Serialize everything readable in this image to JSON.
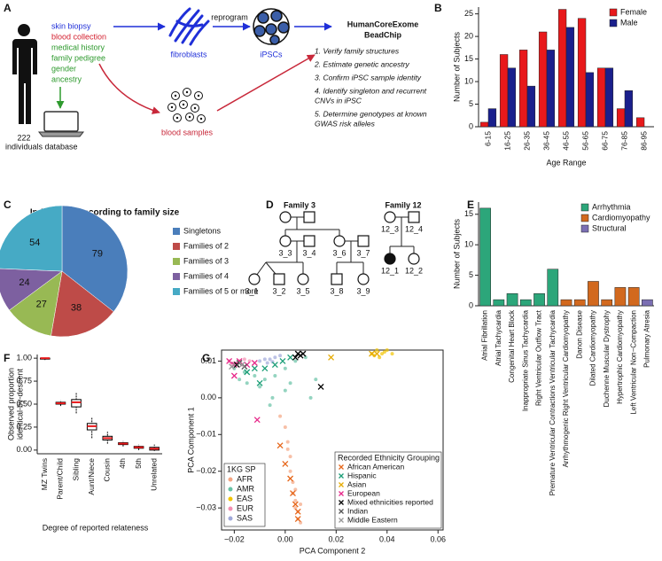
{
  "panel_labels": [
    "A",
    "B",
    "C",
    "D",
    "E",
    "F",
    "G"
  ],
  "panel_a": {
    "individuals_count": 222,
    "individuals_label": "individuals",
    "collected_items": [
      {
        "text": "skin biopsy",
        "color": "#1f2fd8"
      },
      {
        "text": "blood collection",
        "color": "#d3202f"
      },
      {
        "text": "medical history",
        "color": "#2e9a2e"
      },
      {
        "text": "family pedigree",
        "color": "#2e9a2e"
      },
      {
        "text": "gender",
        "color": "#2e9a2e"
      },
      {
        "text": "ancestry",
        "color": "#2e9a2e"
      }
    ],
    "database": "database",
    "fibroblasts": "fibroblasts",
    "reprogram": "reprogram",
    "ipscs": "iPSCs",
    "blood_samples": "blood samples",
    "chip_title": [
      "HumanCoreExome",
      "BeadChip"
    ],
    "steps": [
      [
        "1. Verify family structures"
      ],
      [
        "2. Estimate genetic ancestry"
      ],
      [
        "3. Confirm iPSC sample identity"
      ],
      [
        "4. Identify singleton and recurrent",
        "CNVs in iPSC"
      ],
      [
        "5. Determine genotypes at known",
        "GWAS risk alleles"
      ]
    ]
  },
  "panel_d": {
    "family_3": {
      "title": "Family 3",
      "members": [
        "3_3",
        "3_4",
        "3_6",
        "3_7",
        "3_1",
        "3_2",
        "3_5",
        "3_8",
        "3_9"
      ]
    },
    "family_12": {
      "title": "Family 12",
      "members": [
        "12_3",
        "12_4",
        "12_1",
        "12_2"
      ]
    }
  },
  "chart_data": [
    {
      "type": "bar",
      "x_label": "Age Range",
      "y_label": "Number of Subjects",
      "categories": [
        "6-15",
        "16-25",
        "26-35",
        "36-45",
        "46-55",
        "56-65",
        "66-75",
        "76-85",
        "86-95"
      ],
      "series": [
        {
          "name": "Female",
          "color": "#e8191b",
          "values": [
            1,
            16,
            17,
            21,
            26,
            24,
            13,
            4,
            2
          ]
        },
        {
          "name": "Male",
          "color": "#1a1f8c",
          "values": [
            4,
            13,
            9,
            17,
            22,
            12,
            13,
            8,
            0
          ]
        }
      ],
      "ylim": [
        0,
        26.5
      ],
      "yticks": [
        0,
        5,
        10,
        15,
        20,
        25
      ],
      "legend": "upper right"
    },
    {
      "type": "pie",
      "title": "Individuals according to family size",
      "categories": [
        "Singletons",
        "Families of 2",
        "Families of 3",
        "Families of 4",
        "Families of 5 or more"
      ],
      "values": [
        79,
        38,
        27,
        24,
        54
      ],
      "colors": [
        "#4a7ebb",
        "#be4b48",
        "#98b954",
        "#7d60a0",
        "#46aac5"
      ],
      "legend": "right"
    },
    {
      "type": "bar",
      "y_label": "Number of Subjects",
      "categories": [
        "Atrial Fibrillation",
        "Atrial Tachycardia",
        "Congenital Heart Block",
        "Inappropriate Sinus Tachycardia",
        "Right Ventricular Outflow Tract",
        "Premature Ventricular Contractions Ventricular Tachycardia",
        "Arrhythmogenic Right Ventricular Cardiomyopathy",
        "Danon Disease",
        "Dilated Cardiomyopathy",
        "Duchenne Muscular Dystrophy",
        "Hypertrophic Cardiomyopathy",
        "Left Ventricular Non−Compaction",
        "Pulmonary Atresia"
      ],
      "series": [
        {
          "name": "Arrhythmia",
          "color": "#2ca67a",
          "values": [
            16,
            1,
            2,
            1,
            2,
            6,
            null,
            null,
            null,
            null,
            null,
            null,
            null
          ]
        },
        {
          "name": "Cardiomyopathy",
          "color": "#d2691e",
          "values": [
            null,
            null,
            null,
            null,
            null,
            null,
            1,
            1,
            4,
            1,
            3,
            3,
            null
          ]
        },
        {
          "name": "Structural",
          "color": "#7b6fb3",
          "values": [
            null,
            null,
            null,
            null,
            null,
            null,
            null,
            null,
            null,
            null,
            null,
            null,
            1
          ]
        }
      ],
      "ylim": [
        0,
        17
      ],
      "yticks": [
        0,
        5,
        10,
        15
      ],
      "legend": "upper right"
    },
    {
      "type": "box",
      "x_label": "Degree of reported relateness",
      "y_label": [
        "Observed proportion",
        "identical-by-descent"
      ],
      "categories": [
        "MZ Twins",
        "Parent/Child",
        "Sibling",
        "Aunt/Niece",
        "Cousin",
        "4th",
        "5th",
        "Unrelated"
      ],
      "q1": [
        0.99,
        0.5,
        0.47,
        0.22,
        0.11,
        0.06,
        0.02,
        0.0
      ],
      "median": [
        1.0,
        0.51,
        0.52,
        0.26,
        0.13,
        0.07,
        0.03,
        0.015
      ],
      "q3": [
        1.0,
        0.52,
        0.55,
        0.29,
        0.15,
        0.08,
        0.04,
        0.03
      ],
      "whisker_low": [
        0.98,
        0.48,
        0.4,
        0.13,
        0.07,
        0.04,
        0.0,
        -0.01
      ],
      "whisker_high": [
        1.0,
        0.54,
        0.62,
        0.35,
        0.2,
        0.1,
        0.06,
        0.06
      ],
      "box_color": "#000000",
      "median_color": "#e8191b",
      "ylim": [
        -0.04,
        1.04
      ],
      "yticks": [
        {
          "value": 0,
          "label": "0.00"
        },
        {
          "value": 0.25,
          "label": "0.25"
        },
        {
          "value": 0.5,
          "label": "0.50"
        },
        {
          "value": 0.75,
          "label": "0.75"
        },
        {
          "value": 1,
          "label": "1.00"
        }
      ]
    },
    {
      "type": "scatter",
      "x_label": "PCA Component 2",
      "y_label": "PCA Component 1",
      "xlim": [
        -0.025,
        0.062
      ],
      "ylim": [
        -0.036,
        0.013
      ],
      "xticks": [
        {
          "value": -0.02,
          "label": "−0.02"
        },
        {
          "value": 0,
          "label": "0.00"
        },
        {
          "value": 0.02,
          "label": "0.02"
        },
        {
          "value": 0.04,
          "label": "0.04"
        },
        {
          "value": 0.06,
          "label": "0.06"
        }
      ],
      "yticks": [
        {
          "value": -0.03,
          "label": "−0.03"
        },
        {
          "value": -0.02,
          "label": "−0.02"
        },
        {
          "value": -0.01,
          "label": "−0.01"
        },
        {
          "value": 0,
          "label": "0.00"
        },
        {
          "value": 0.01,
          "label": "0.01"
        }
      ],
      "reference_title": "1KG SP",
      "reference_legend": "lower left",
      "reference_series": [
        {
          "name": "AFR",
          "color": "#f4a582",
          "x": [
            0.0,
            0.001,
            0.002,
            0.002,
            0.003,
            0.003,
            0.004,
            0.004,
            0.005,
            0.005,
            0.006,
            0.006,
            -0.002,
            0.001,
            0.004
          ],
          "y": [
            -0.008,
            -0.012,
            -0.016,
            -0.02,
            -0.023,
            -0.026,
            -0.028,
            -0.03,
            -0.031,
            -0.033,
            -0.034,
            -0.029,
            -0.005,
            -0.014,
            -0.025
          ]
        },
        {
          "name": "AMR",
          "color": "#66c2a5",
          "x": [
            -0.02,
            -0.016,
            -0.012,
            -0.008,
            -0.004,
            0.0,
            0.004,
            0.008,
            -0.01,
            -0.005,
            0.002,
            -0.015,
            -0.006,
            0.0,
            -0.018,
            0.01,
            0.012
          ],
          "y": [
            0.008,
            0.007,
            0.006,
            0.005,
            0.006,
            0.008,
            0.01,
            0.011,
            0.003,
            0.0,
            0.004,
            0.004,
            -0.002,
            0.002,
            0.005,
            0.0,
            0.005
          ]
        },
        {
          "name": "EAS",
          "color": "#f2c500",
          "x": [
            0.034,
            0.036,
            0.038,
            0.04,
            0.042,
            0.037,
            0.039,
            0.035
          ],
          "y": [
            0.012,
            0.013,
            0.012,
            0.013,
            0.012,
            0.011,
            0.0125,
            0.0115
          ]
        },
        {
          "name": "EUR",
          "color": "#f48fb1",
          "x": [
            -0.022,
            -0.02,
            -0.018,
            -0.016,
            -0.014,
            -0.021,
            -0.017
          ],
          "y": [
            0.01,
            0.0095,
            0.01,
            0.0105,
            0.01,
            0.009,
            0.009
          ]
        },
        {
          "name": "SAS",
          "color": "#9fa8da",
          "x": [
            -0.01,
            -0.008,
            -0.006,
            -0.004,
            -0.002,
            -0.007,
            -0.005
          ],
          "y": [
            0.01,
            0.0105,
            0.0105,
            0.011,
            0.0115,
            0.0095,
            0.0098
          ]
        }
      ],
      "legend_title": "Recorded Ethnicity Grouping",
      "legend": "lower right",
      "series": [
        {
          "name": "African American",
          "color": "#e6661a",
          "x": [
            -0.002,
            0.0,
            0.002,
            0.003,
            0.004,
            0.005,
            0.005
          ],
          "y": [
            -0.013,
            -0.018,
            -0.022,
            -0.026,
            -0.029,
            -0.031,
            -0.033
          ]
        },
        {
          "name": "Hispanic",
          "color": "#1b9e77",
          "x": [
            -0.02,
            -0.015,
            -0.012,
            -0.008,
            -0.004,
            -0.001,
            0.002,
            -0.01
          ],
          "y": [
            0.009,
            0.007,
            0.008,
            0.008,
            0.009,
            0.01,
            0.011,
            0.004
          ]
        },
        {
          "name": "Asian",
          "color": "#e6ab02",
          "x": [
            0.018,
            0.034,
            0.036
          ],
          "y": [
            0.011,
            0.012,
            0.012
          ]
        },
        {
          "name": "European",
          "color": "#e7298a",
          "x": [
            -0.022,
            -0.02,
            -0.018,
            -0.015,
            -0.012,
            -0.011,
            -0.02
          ],
          "y": [
            0.01,
            0.009,
            0.01,
            0.009,
            0.0095,
            -0.006,
            0.006
          ]
        },
        {
          "name": "Mixed ethnicities reported",
          "color": "#000000",
          "x": [
            -0.019,
            0.004,
            0.005,
            0.006,
            0.007,
            0.014
          ],
          "y": [
            0.009,
            0.011,
            0.012,
            0.0115,
            0.012,
            0.003
          ]
        },
        {
          "name": "Indian",
          "color": "#555555",
          "x": [
            -0.018,
            -0.016
          ],
          "y": [
            0.0095,
            0.0085
          ]
        },
        {
          "name": "Middle Eastern",
          "color": "#999999",
          "x": [
            -0.017,
            -0.021
          ],
          "y": [
            0.009,
            0.0085
          ]
        }
      ]
    }
  ]
}
